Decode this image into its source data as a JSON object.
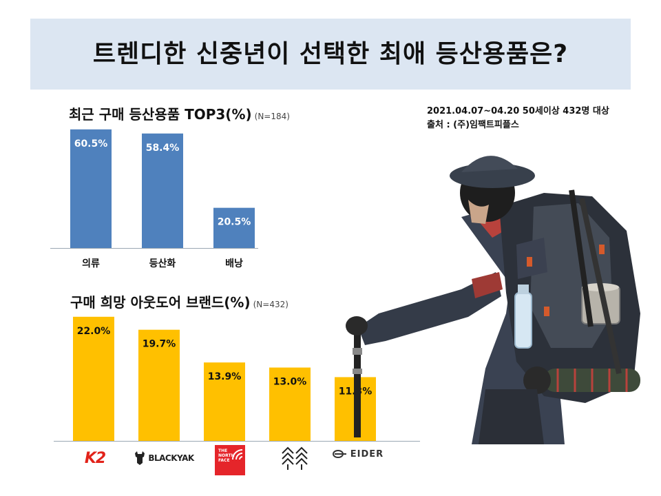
{
  "title": "트렌디한 신중년이 선택한 최애 등산용품은?",
  "source": {
    "line1": "2021.04.07~04.20 50세이상 432명 대상",
    "line2": "출처 :  (주)임팩트피플스"
  },
  "chart_data": [
    {
      "type": "bar",
      "title": "최근 구매 등산용품 TOP3(%)",
      "note": "(N=184)",
      "categories": [
        "의류",
        "등산화",
        "배낭"
      ],
      "values": [
        60.5,
        58.4,
        20.5
      ],
      "value_labels": [
        "60.5%",
        "58.4%",
        "20.5%"
      ],
      "ylim": [
        0,
        65
      ],
      "color": "#4f81bd",
      "grid": false
    },
    {
      "type": "bar",
      "title": "구매 희망 아웃도어 브랜드(%)",
      "note": "(N=432)",
      "categories": [
        "K2",
        "BLACKYAK",
        "THE NORTH FACE",
        "",
        "EIDER"
      ],
      "values": [
        22.0,
        19.7,
        13.9,
        13.0,
        11.3
      ],
      "value_labels": [
        "22.0%",
        "19.7%",
        "13.9%",
        "13.0%",
        "11.3%"
      ],
      "ylim": [
        0,
        23.2
      ],
      "color": "#ffc000",
      "grid": false
    }
  ],
  "logos": {
    "k2": "K2",
    "blackyak": "BLACKYAK",
    "northface": [
      "THE",
      "NORTH",
      "FACE"
    ],
    "eider": "EIDER"
  },
  "colors": {
    "banner": "#dce6f2",
    "bar1": "#4f81bd",
    "bar2": "#ffc000",
    "northface": "#e5252a",
    "k2": "#e2231a"
  }
}
